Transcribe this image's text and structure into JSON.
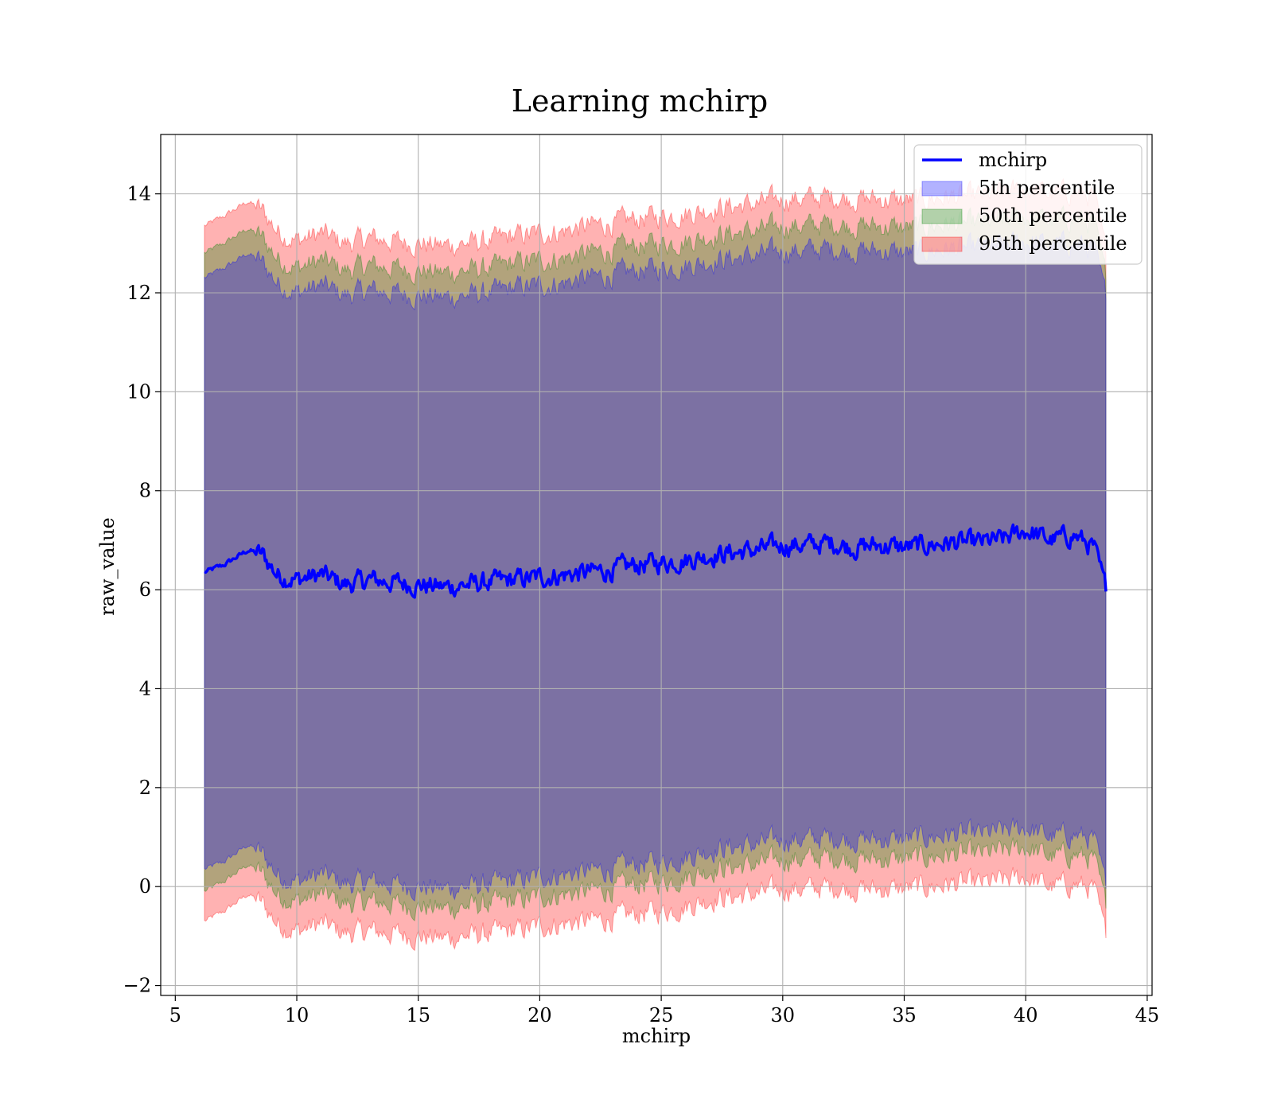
{
  "chart_data": {
    "type": "area",
    "title": "Learning mchirp",
    "xlabel": "mchirp",
    "ylabel": "raw_value",
    "xlim": [
      4.4,
      45.2
    ],
    "ylim": [
      -2.2,
      15.2
    ],
    "xticks": [
      5,
      10,
      15,
      20,
      25,
      30,
      35,
      40,
      45
    ],
    "yticks": [
      -2,
      0,
      2,
      4,
      6,
      8,
      10,
      12,
      14
    ],
    "xtick_labels": [
      "5",
      "10",
      "15",
      "20",
      "25",
      "30",
      "35",
      "40",
      "45"
    ],
    "ytick_labels": [
      "−2",
      "0",
      "2",
      "4",
      "6",
      "8",
      "10",
      "12",
      "14"
    ],
    "grid": true,
    "legend_position": "top-right",
    "x": [
      6.2,
      7.0,
      8.0,
      8.6,
      9.2,
      10.0,
      11.0,
      12.0,
      13.0,
      14.0,
      15.0,
      16.0,
      17.0,
      18.0,
      19.0,
      20.0,
      21.0,
      22.0,
      23.0,
      24.0,
      25.0,
      26.0,
      27.0,
      28.0,
      29.0,
      30.0,
      31.0,
      32.0,
      33.0,
      34.0,
      35.0,
      36.0,
      37.0,
      38.0,
      39.0,
      40.0,
      41.0,
      42.0,
      42.8,
      43.3
    ],
    "series": [
      {
        "name": "mchirp",
        "kind": "line",
        "color": "#0000ff",
        "values": [
          6.35,
          6.5,
          6.8,
          6.7,
          6.3,
          6.2,
          6.3,
          6.1,
          6.2,
          6.15,
          6.1,
          6.05,
          6.1,
          6.15,
          6.2,
          6.25,
          6.3,
          6.35,
          6.4,
          6.5,
          6.55,
          6.6,
          6.7,
          6.75,
          6.8,
          6.9,
          6.9,
          6.95,
          6.85,
          6.9,
          6.85,
          6.9,
          6.95,
          6.95,
          7.0,
          7.2,
          7.0,
          7.1,
          6.85,
          6.0
        ]
      },
      {
        "name": "5th percentile",
        "kind": "band",
        "color": "#0000ff",
        "lower": [
          0.35,
          0.5,
          0.85,
          0.65,
          0.25,
          0.1,
          0.25,
          0.05,
          0.1,
          0.05,
          0.0,
          -0.05,
          0.0,
          0.05,
          0.1,
          0.2,
          0.25,
          0.3,
          0.35,
          0.45,
          0.5,
          0.6,
          0.75,
          0.8,
          0.85,
          0.95,
          0.95,
          1.0,
          0.95,
          0.95,
          0.95,
          1.0,
          1.05,
          1.05,
          1.1,
          1.2,
          1.0,
          1.05,
          0.95,
          0.0
        ],
        "upper": [
          12.3,
          12.5,
          12.8,
          12.6,
          12.2,
          12.0,
          12.15,
          11.95,
          12.05,
          12.0,
          11.95,
          11.9,
          11.95,
          12.0,
          12.1,
          12.15,
          12.2,
          12.3,
          12.35,
          12.45,
          12.5,
          12.55,
          12.65,
          12.7,
          12.75,
          12.85,
          12.85,
          12.9,
          12.85,
          12.85,
          12.8,
          12.85,
          12.9,
          12.9,
          12.95,
          13.05,
          12.95,
          13.0,
          12.9,
          11.9
        ]
      },
      {
        "name": "50th percentile",
        "kind": "band",
        "color": "#008000",
        "lower": [
          -0.1,
          0.1,
          0.45,
          0.25,
          -0.15,
          -0.3,
          -0.15,
          -0.35,
          -0.3,
          -0.35,
          -0.4,
          -0.45,
          -0.4,
          -0.35,
          -0.3,
          -0.2,
          -0.15,
          -0.1,
          -0.05,
          0.05,
          0.1,
          0.2,
          0.35,
          0.4,
          0.45,
          0.55,
          0.55,
          0.6,
          0.55,
          0.55,
          0.55,
          0.6,
          0.65,
          0.65,
          0.7,
          0.8,
          0.6,
          0.65,
          0.55,
          -0.4
        ],
        "upper": [
          12.8,
          13.0,
          13.3,
          13.1,
          12.7,
          12.5,
          12.65,
          12.45,
          12.55,
          12.5,
          12.45,
          12.4,
          12.45,
          12.5,
          12.6,
          12.65,
          12.7,
          12.8,
          12.85,
          12.95,
          13.0,
          13.05,
          13.15,
          13.2,
          13.25,
          13.35,
          13.35,
          13.4,
          13.35,
          13.35,
          13.3,
          13.35,
          13.4,
          13.4,
          13.45,
          13.55,
          13.45,
          13.5,
          13.4,
          12.3
        ]
      },
      {
        "name": "95th percentile",
        "kind": "band",
        "color": "#ff0000",
        "lower": [
          -0.7,
          -0.5,
          -0.15,
          -0.35,
          -0.75,
          -0.9,
          -0.75,
          -0.95,
          -0.9,
          -0.95,
          -1.0,
          -1.05,
          -1.0,
          -0.95,
          -0.9,
          -0.8,
          -0.75,
          -0.7,
          -0.65,
          -0.55,
          -0.5,
          -0.4,
          -0.25,
          -0.2,
          -0.15,
          -0.05,
          -0.05,
          0.0,
          -0.05,
          -0.05,
          -0.05,
          0.0,
          0.05,
          0.05,
          0.1,
          0.2,
          0.0,
          0.05,
          -0.05,
          -1.0
        ],
        "upper": [
          13.35,
          13.55,
          13.85,
          13.65,
          13.25,
          13.05,
          13.2,
          13.0,
          13.1,
          13.05,
          13.0,
          12.95,
          13.0,
          13.05,
          13.15,
          13.2,
          13.25,
          13.35,
          13.4,
          13.5,
          13.55,
          13.6,
          13.7,
          13.75,
          13.8,
          13.9,
          13.9,
          13.95,
          13.9,
          13.9,
          13.85,
          13.9,
          13.95,
          13.95,
          14.0,
          14.1,
          14.0,
          14.05,
          13.95,
          12.8
        ]
      }
    ]
  }
}
